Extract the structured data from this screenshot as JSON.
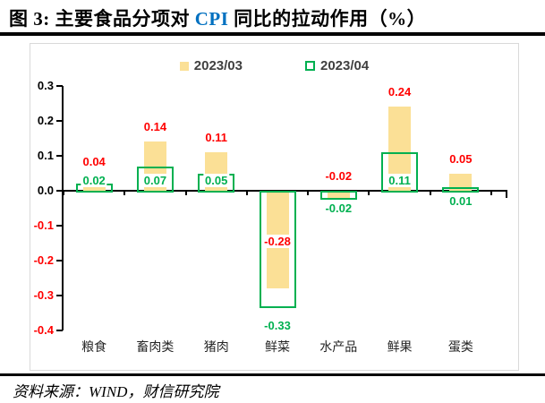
{
  "title": {
    "prefix": "图 3:  主要食品分项对 ",
    "highlight": "CPI",
    "suffix": " 同比的拉动作用（%）"
  },
  "footer": {
    "source_label": "资料来源：WIND，财信研究院"
  },
  "colors": {
    "title_highlight": "#0070C0",
    "axis": "#000000",
    "panel_border": "#D9D9D9",
    "negative_tick": "#FF0000"
  },
  "chart_data": {
    "type": "bar",
    "title": "主要食品分项对 CPI 同比的拉动作用（%）",
    "categories": [
      "粮食",
      "畜肉类",
      "猪肉",
      "鲜菜",
      "水产品",
      "鲜果",
      "蛋类"
    ],
    "series": [
      {
        "name": "2023/03",
        "style": "filled",
        "color": "#FBE096",
        "label_color": "#FF0000",
        "values": [
          0.04,
          0.14,
          0.11,
          -0.28,
          -0.02,
          0.24,
          0.05
        ],
        "label_pos": [
          "above",
          "above",
          "above",
          "inside",
          "above-axis",
          "above",
          "above"
        ]
      },
      {
        "name": "2023/04",
        "style": "outline",
        "color": "#00B050",
        "label_color": "#00B050",
        "values": [
          0.02,
          0.07,
          0.05,
          -0.33,
          -0.02,
          0.11,
          0.01
        ],
        "label_pos": [
          "inside-bottom",
          "inside-bottom",
          "inside-bottom",
          "below-far",
          "below",
          "inside-bottom",
          "below"
        ]
      }
    ],
    "ylim": [
      -0.4,
      0.3
    ],
    "ytick_step": 0.1,
    "yticks": [
      0.3,
      0.2,
      0.1,
      0.0,
      -0.1,
      -0.2,
      -0.3,
      -0.4
    ],
    "ytick_labels": [
      "0.3",
      "0.2",
      "0.1",
      "0.0",
      "-0.1",
      "-0.2",
      "-0.3",
      "-0.4"
    ],
    "tick_colors": {
      "nonnegative": "#000000",
      "negative": "#FF0000"
    },
    "legend_position": "top-center",
    "grid": false
  }
}
